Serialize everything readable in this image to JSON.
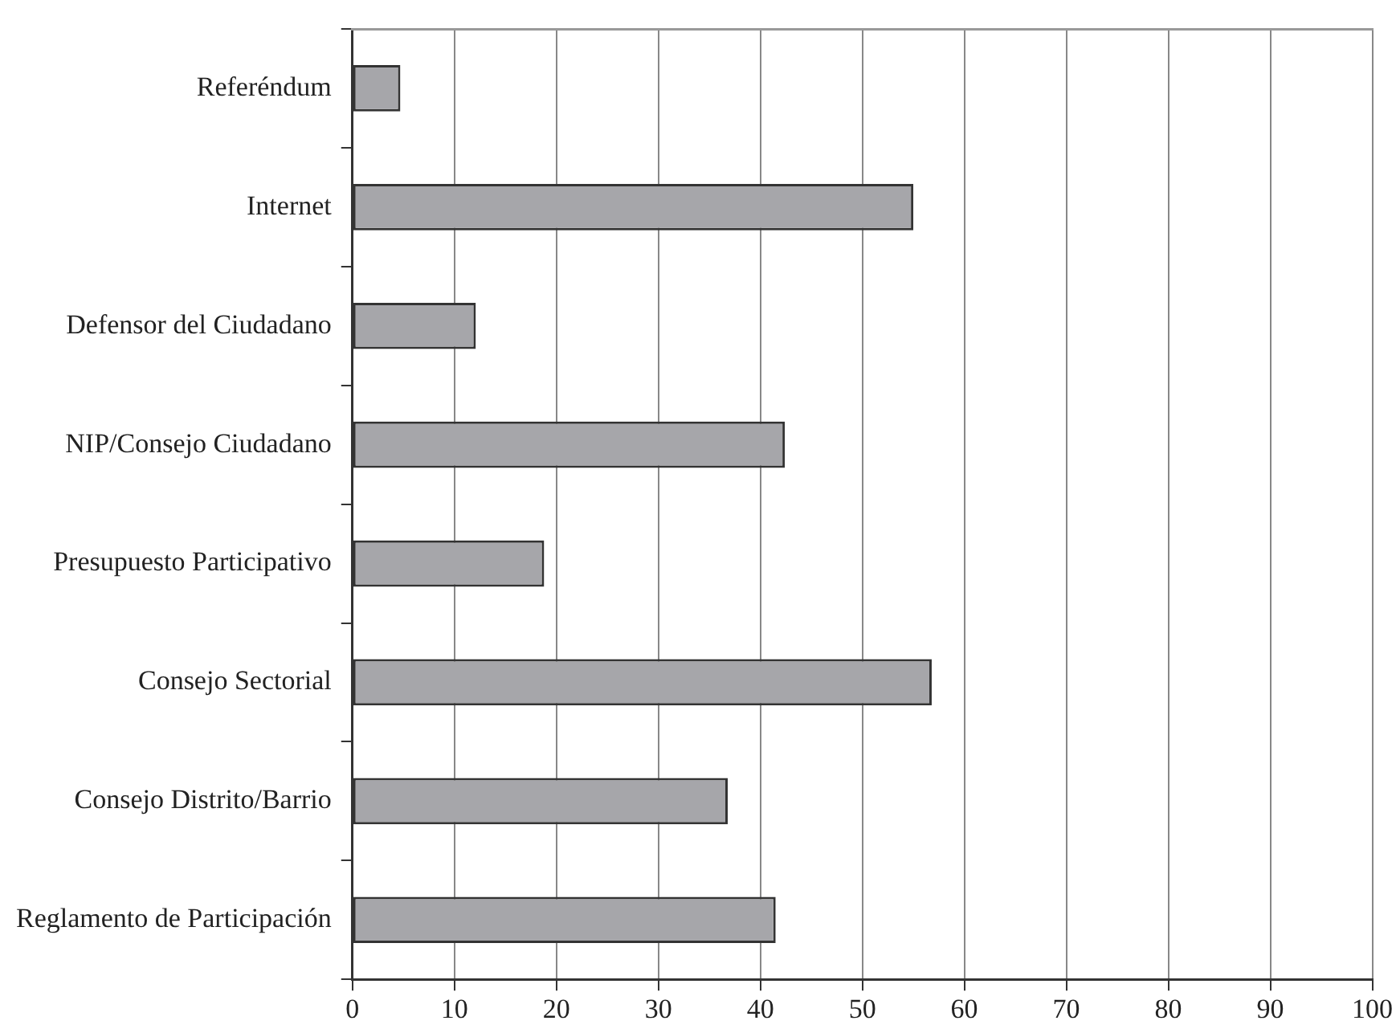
{
  "chart_data": {
    "type": "bar",
    "orientation": "horizontal",
    "categories": [
      "Referéndum",
      "Internet",
      "Defensor del Ciudadano",
      "NIP/Consejo Ciudadano",
      "Presupuesto Participativo",
      "Consejo Sectorial",
      "Consejo Distrito/Barrio",
      "Reglamento de Participación"
    ],
    "values": [
      4.7,
      55,
      12.1,
      42.4,
      18.8,
      56.8,
      36.8,
      41.5
    ],
    "color": "#a6a6aa",
    "xlim": [
      0,
      100
    ],
    "xticks": [
      0,
      10,
      20,
      30,
      40,
      50,
      60,
      70,
      80,
      90,
      100
    ],
    "grid": "x",
    "legend": false
  }
}
